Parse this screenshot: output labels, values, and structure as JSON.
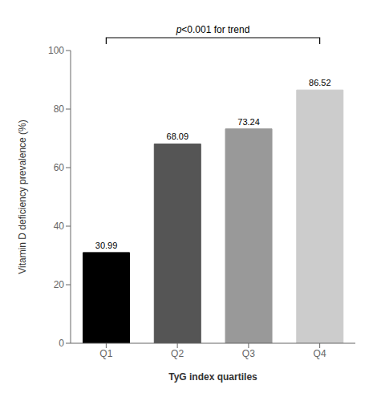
{
  "chart_data": {
    "type": "bar",
    "categories": [
      "Q1",
      "Q2",
      "Q3",
      "Q4"
    ],
    "values": [
      30.99,
      68.09,
      73.24,
      86.52
    ],
    "value_labels": [
      "30.99",
      "68.09",
      "73.24",
      "86.52"
    ],
    "data_labels": true,
    "colors": [
      "#000000",
      "#555555",
      "#999999",
      "#cccccc"
    ],
    "xlabel": "TyG index quartiles",
    "ylabel": "Vitamin D deficiency prevalence (%)",
    "ylim": [
      0,
      100
    ],
    "yticks": [
      0,
      20,
      40,
      60,
      80,
      100
    ],
    "grid": false,
    "annotation": "p<0.001 for trend"
  }
}
